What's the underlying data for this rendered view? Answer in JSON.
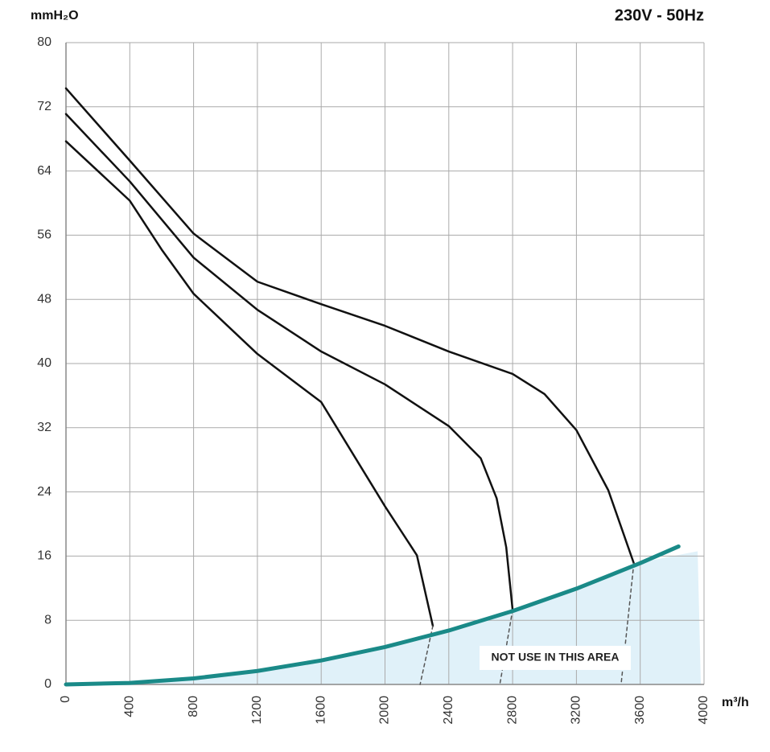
{
  "chart_data": {
    "type": "line",
    "subtitle": "230V - 50Hz",
    "y_label": "mmH₂O",
    "x_label": "m³/h",
    "annotation": "NOT USE IN THIS AREA",
    "xlim": [
      0,
      4000
    ],
    "xticks": [
      0,
      400,
      800,
      1200,
      1600,
      2000,
      2400,
      2800,
      3200,
      3600,
      4000
    ],
    "ylim": [
      0,
      80
    ],
    "yticks": [
      0,
      8,
      16,
      24,
      32,
      40,
      48,
      56,
      64,
      72,
      80
    ],
    "grid": true,
    "area": {
      "color": "#d8eef8",
      "x": [
        0,
        400,
        800,
        1200,
        1600,
        2000,
        2400,
        2800,
        3200,
        3600,
        3960,
        3980
      ],
      "values": [
        0,
        0.2,
        0.8,
        1.7,
        3.0,
        4.7,
        6.8,
        9.2,
        12.0,
        15.2,
        16.6,
        0
      ]
    },
    "series": [
      {
        "color": "#111111",
        "width": 2.5,
        "dash": false,
        "x": [
          0,
          400,
          800,
          1200,
          1600,
          2000,
          2400,
          2800,
          3000,
          3200,
          3400,
          3560
        ],
        "values": [
          74.3,
          65.3,
          56.2,
          50.2,
          47.4,
          44.7,
          41.5,
          38.7,
          36.2,
          31.7,
          24.2,
          15.1
        ]
      },
      {
        "color": "#111111",
        "width": 2.5,
        "dash": false,
        "x": [
          0,
          400,
          800,
          1200,
          1600,
          2000,
          2400,
          2600,
          2700,
          2760,
          2800
        ],
        "values": [
          71.1,
          62.7,
          53.2,
          46.7,
          41.5,
          37.4,
          32.2,
          28.2,
          23.2,
          17.1,
          9.3
        ]
      },
      {
        "color": "#111111",
        "width": 2.5,
        "dash": false,
        "x": [
          0,
          400,
          600,
          800,
          1200,
          1600,
          2000,
          2200,
          2300
        ],
        "values": [
          67.7,
          60.3,
          54.2,
          48.7,
          41.2,
          35.2,
          22.2,
          16.1,
          7.3
        ]
      },
      {
        "color": "#555555",
        "width": 1.5,
        "dash": true,
        "x": [
          3560,
          3480
        ],
        "values": [
          15.1,
          0
        ]
      },
      {
        "color": "#555555",
        "width": 1.5,
        "dash": true,
        "x": [
          2800,
          2720
        ],
        "values": [
          9.3,
          0
        ]
      },
      {
        "color": "#555555",
        "width": 1.5,
        "dash": true,
        "x": [
          2300,
          2220
        ],
        "values": [
          7.3,
          0
        ]
      },
      {
        "color": "#1a8a88",
        "width": 5,
        "dash": false,
        "x": [
          0,
          400,
          800,
          1200,
          1600,
          2000,
          2400,
          2800,
          3200,
          3600,
          3840
        ],
        "values": [
          0,
          0.19,
          0.75,
          1.68,
          2.99,
          4.67,
          6.72,
          9.15,
          11.94,
          15.12,
          17.2
        ]
      }
    ]
  }
}
